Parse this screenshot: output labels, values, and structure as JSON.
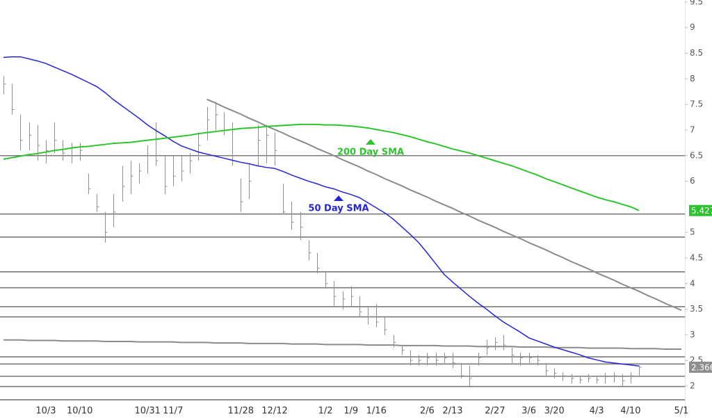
{
  "chart_data": {
    "type": "ohlc",
    "categories": [
      null,
      null,
      null,
      null,
      null,
      "10/3",
      null,
      null,
      null,
      "10/10",
      null,
      null,
      null,
      null,
      null,
      null,
      null,
      "10/31",
      null,
      null,
      "11/7",
      null,
      null,
      null,
      null,
      null,
      null,
      null,
      "11/28",
      null,
      null,
      null,
      "12/12",
      null,
      null,
      null,
      null,
      null,
      "1/2",
      null,
      null,
      "1/9",
      null,
      null,
      "1/16",
      null,
      null,
      null,
      null,
      null,
      "2/6",
      null,
      null,
      "2/13",
      null,
      null,
      null,
      null,
      "2/27",
      null,
      null,
      null,
      "3/6",
      null,
      null,
      "3/20",
      null,
      null,
      null,
      null,
      "4/3",
      null,
      null,
      null,
      "4/10",
      null,
      null,
      null,
      null,
      null,
      "5/1"
    ],
    "ohlc": {
      "color": "#8e8e8e",
      "price_box": true,
      "high": [
        8.05,
        7.9,
        7.3,
        7.15,
        7.1,
        6.8,
        7.15,
        6.8,
        6.75,
        6.75,
        6.15,
        5.75,
        5.4,
        5.75,
        6.3,
        6.4,
        6.35,
        6.7,
        7.15,
        6.5,
        6.5,
        6.5,
        6.55,
        6.95,
        7.45,
        7.55,
        7.35,
        7.15,
        6.05,
        6.35,
        7.1,
        7.1,
        6.95,
        5.95,
        5.6,
        5.4,
        4.85,
        4.6,
        4.25,
        4.05,
        3.85,
        3.95,
        3.75,
        3.55,
        3.6,
        3.35,
        3.0,
        2.8,
        2.7,
        2.6,
        2.65,
        2.65,
        2.65,
        2.65,
        2.45,
        2.4,
        2.65,
        2.9,
        2.95,
        3.0,
        2.75,
        2.65,
        2.65,
        2.6,
        2.45,
        2.35,
        2.27,
        2.23,
        2.2,
        2.23,
        2.2,
        2.26,
        2.27,
        2.23,
        2.27,
        2.4,
        null,
        null,
        null,
        null,
        null
      ],
      "low": [
        7.7,
        7.3,
        6.6,
        6.6,
        6.4,
        6.35,
        6.55,
        6.4,
        6.35,
        6.4,
        5.75,
        5.4,
        4.8,
        5.1,
        5.6,
        5.75,
        5.95,
        6.15,
        6.3,
        5.75,
        5.9,
        6.0,
        6.15,
        6.4,
        6.8,
        7.0,
        6.9,
        6.3,
        5.4,
        5.65,
        6.3,
        6.35,
        6.3,
        5.35,
        5.05,
        4.85,
        4.45,
        4.2,
        3.9,
        3.55,
        3.5,
        3.55,
        3.35,
        3.2,
        3.15,
        3.0,
        2.75,
        2.6,
        2.4,
        2.4,
        2.4,
        2.4,
        2.45,
        2.35,
        2.15,
        2.0,
        2.4,
        2.6,
        2.7,
        2.7,
        2.45,
        2.4,
        2.45,
        2.4,
        2.2,
        2.15,
        2.1,
        2.05,
        2.05,
        2.07,
        2.05,
        2.05,
        2.07,
        2.0,
        2.05,
        2.2,
        null,
        null,
        null,
        null,
        null
      ],
      "close": [
        7.9,
        7.4,
        6.8,
        6.9,
        6.7,
        6.6,
        6.8,
        6.55,
        6.5,
        6.6,
        5.85,
        5.5,
        5.0,
        5.4,
        5.9,
        6.1,
        6.2,
        6.5,
        6.4,
        5.9,
        6.1,
        6.2,
        6.4,
        6.7,
        7.2,
        7.3,
        7.0,
        6.4,
        5.6,
        6.0,
        6.8,
        6.9,
        6.6,
        5.4,
        5.2,
        5.1,
        4.6,
        4.3,
        4.0,
        3.75,
        3.7,
        3.75,
        3.45,
        3.35,
        3.25,
        3.1,
        2.85,
        2.7,
        2.5,
        2.5,
        2.55,
        2.5,
        2.55,
        2.45,
        2.2,
        2.15,
        2.55,
        2.75,
        2.85,
        2.8,
        2.6,
        2.55,
        2.55,
        2.5,
        2.3,
        2.25,
        2.2,
        2.15,
        2.12,
        2.15,
        2.12,
        2.18,
        2.2,
        2.1,
        2.2,
        2.366,
        null,
        null,
        null,
        null,
        null
      ]
    },
    "series": [
      {
        "name": "50 Day SMA",
        "color": "#2424d8",
        "value_box": false,
        "values": [
          8.42,
          8.43,
          8.43,
          8.39,
          8.35,
          8.3,
          8.23,
          8.16,
          8.09,
          8.01,
          7.93,
          7.85,
          7.73,
          7.59,
          7.47,
          7.35,
          7.23,
          7.1,
          6.99,
          6.89,
          6.78,
          6.69,
          6.63,
          6.57,
          6.53,
          6.49,
          6.45,
          6.41,
          6.37,
          6.34,
          6.3,
          6.27,
          6.25,
          6.19,
          6.12,
          6.06,
          6.0,
          5.95,
          5.89,
          5.85,
          5.79,
          5.74,
          5.68,
          5.58,
          5.48,
          5.38,
          5.26,
          5.11,
          4.96,
          4.8,
          4.6,
          4.39,
          4.18,
          4.03,
          3.89,
          3.75,
          3.62,
          3.5,
          3.37,
          3.25,
          3.15,
          3.05,
          2.94,
          2.88,
          2.82,
          2.76,
          2.71,
          2.66,
          2.61,
          2.55,
          2.51,
          2.47,
          2.45,
          2.43,
          2.41,
          2.39,
          null,
          null,
          null,
          null,
          null
        ]
      },
      {
        "name": "200 Day SMA",
        "color": "#2ec42e",
        "value_box": true,
        "values": [
          6.43,
          6.46,
          6.49,
          6.52,
          6.54,
          6.57,
          6.6,
          6.62,
          6.65,
          6.67,
          6.68,
          6.7,
          6.72,
          6.74,
          6.75,
          6.76,
          6.78,
          6.8,
          6.82,
          6.84,
          6.86,
          6.88,
          6.9,
          6.93,
          6.95,
          6.97,
          6.99,
          7.01,
          7.03,
          7.04,
          7.05,
          7.07,
          7.08,
          7.09,
          7.1,
          7.11,
          7.11,
          7.11,
          7.1,
          7.1,
          7.09,
          7.08,
          7.06,
          7.04,
          7.01,
          6.98,
          6.95,
          6.91,
          6.87,
          6.82,
          6.77,
          6.73,
          6.68,
          6.63,
          6.59,
          6.55,
          6.5,
          6.45,
          6.4,
          6.35,
          6.3,
          6.24,
          6.18,
          6.12,
          6.05,
          5.99,
          5.93,
          5.87,
          5.81,
          5.75,
          5.69,
          5.64,
          5.6,
          5.55,
          5.5,
          5.427,
          null,
          null,
          null,
          null,
          null
        ]
      }
    ],
    "trendlines": [
      {
        "color": "#8a8a8a",
        "values": [
          null,
          null,
          null,
          null,
          null,
          null,
          null,
          null,
          null,
          null,
          null,
          null,
          null,
          null,
          null,
          null,
          null,
          null,
          null,
          null,
          null,
          null,
          null,
          null,
          7.6,
          7.53,
          7.45,
          7.38,
          7.31,
          7.23,
          7.16,
          7.08,
          7.01,
          6.94,
          6.86,
          6.79,
          6.72,
          6.64,
          6.57,
          6.5,
          6.42,
          6.35,
          6.28,
          6.2,
          6.13,
          6.05,
          5.98,
          5.91,
          5.83,
          5.76,
          5.69,
          5.61,
          5.54,
          5.47,
          5.39,
          5.32,
          5.24,
          5.17,
          5.1,
          5.02,
          4.95,
          4.88,
          4.8,
          4.73,
          4.66,
          4.58,
          4.51,
          4.43,
          4.36,
          4.29,
          4.21,
          4.14,
          4.07,
          3.99,
          3.92,
          3.85,
          3.77,
          3.7,
          3.62,
          3.55,
          3.48
        ]
      },
      {
        "color": "#8a8a8a",
        "values": [
          2.9,
          2.9,
          2.9,
          2.89,
          2.89,
          2.89,
          2.89,
          2.88,
          2.88,
          2.88,
          2.88,
          2.88,
          2.87,
          2.87,
          2.87,
          2.87,
          2.86,
          2.86,
          2.86,
          2.86,
          2.86,
          2.85,
          2.85,
          2.85,
          2.85,
          2.84,
          2.84,
          2.84,
          2.84,
          2.83,
          2.83,
          2.83,
          2.83,
          2.83,
          2.82,
          2.82,
          2.82,
          2.82,
          2.81,
          2.81,
          2.81,
          2.81,
          2.81,
          2.8,
          2.8,
          2.8,
          2.8,
          2.79,
          2.79,
          2.79,
          2.79,
          2.79,
          2.78,
          2.78,
          2.78,
          2.78,
          2.77,
          2.77,
          2.77,
          2.77,
          2.77,
          2.76,
          2.76,
          2.76,
          2.76,
          2.75,
          2.75,
          2.75,
          2.75,
          2.74,
          2.74,
          2.74,
          2.74,
          2.74,
          2.73,
          2.73,
          2.73,
          2.73,
          2.72,
          2.72,
          2.72
        ]
      }
    ],
    "levels": [
      6.5,
      5.36,
      4.91,
      4.23,
      3.92,
      3.55,
      3.35,
      2.57,
      2.43,
      2.19,
      1.99,
      1.73
    ],
    "level_color": "#7a7a7a",
    "ylim": [
      1.66,
      9.54
    ],
    "yticks": [
      2,
      2.5,
      3,
      3.5,
      4,
      4.5,
      5,
      6,
      6.5,
      7,
      7.5,
      8,
      8.5,
      9,
      9.5
    ]
  }
}
